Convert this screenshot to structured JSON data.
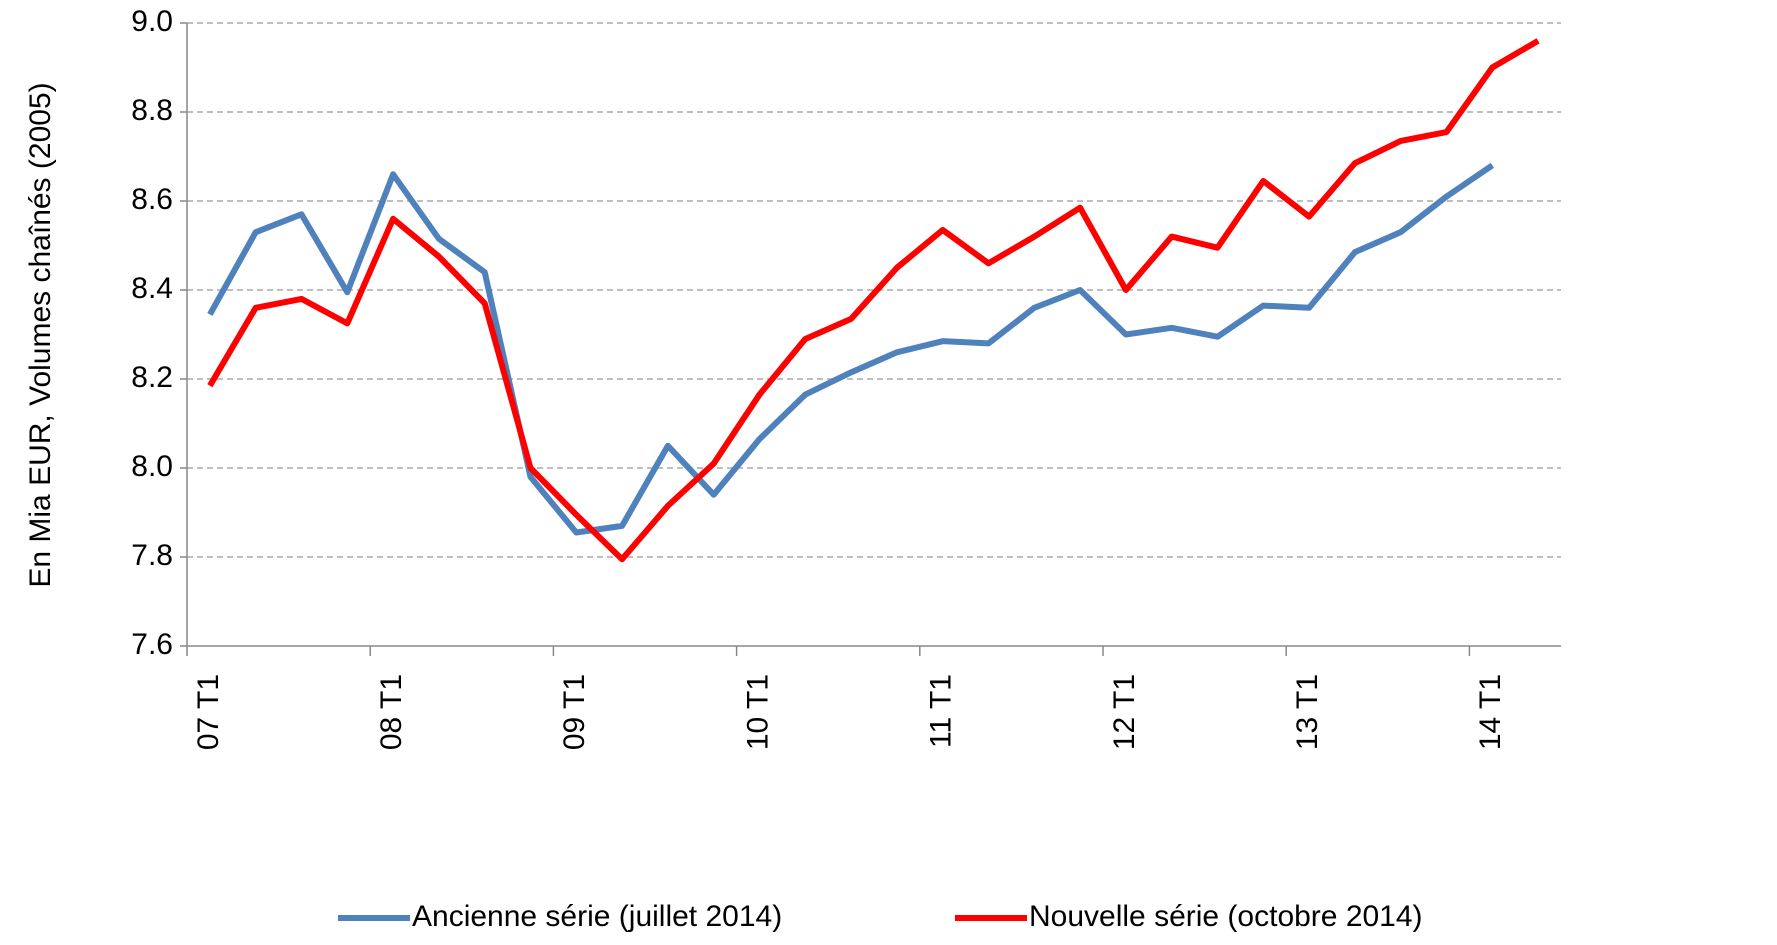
{
  "chart_data": {
    "type": "line",
    "y_label": "En Mia EUR, Volumes chaînés (2005)",
    "categories": [
      "07 T1",
      null,
      null,
      null,
      "08 T1",
      null,
      null,
      null,
      "09 T1",
      null,
      null,
      null,
      "10 T1",
      null,
      null,
      null,
      "11 T1",
      null,
      null,
      null,
      "12 T1",
      null,
      null,
      null,
      "13 T1",
      null,
      null,
      null,
      "14 T1",
      null
    ],
    "series": [
      {
        "name": "Ancienne série (juillet 2014)",
        "color": "#4f81bd",
        "values": [
          8.345,
          8.53,
          8.57,
          8.395,
          8.66,
          8.515,
          8.44,
          7.98,
          7.855,
          7.87,
          8.05,
          7.94,
          8.065,
          8.165,
          8.215,
          8.26,
          8.285,
          8.28,
          8.36,
          8.4,
          8.3,
          8.315,
          8.295,
          8.365,
          8.36,
          8.485,
          8.53,
          8.61,
          8.68,
          null
        ]
      },
      {
        "name": "Nouvelle série (octobre 2014)",
        "color": "#ff0000",
        "values": [
          8.185,
          8.36,
          8.38,
          8.325,
          8.56,
          8.475,
          8.37,
          8.0,
          7.895,
          7.795,
          7.915,
          8.01,
          8.165,
          8.29,
          8.335,
          8.45,
          8.535,
          8.46,
          8.52,
          8.585,
          8.4,
          8.52,
          8.495,
          8.645,
          8.565,
          8.685,
          8.735,
          8.755,
          8.9,
          8.96
        ]
      }
    ],
    "ylim": [
      7.6,
      9.0
    ],
    "yticks": [
      7.6,
      7.8,
      {
        "value": 8.0,
        "label": "8.0"
      },
      8.2,
      8.4,
      8.6,
      8.8,
      {
        "value": 9.0,
        "label": "9.0"
      }
    ],
    "grid": true,
    "legend": "bottom"
  }
}
